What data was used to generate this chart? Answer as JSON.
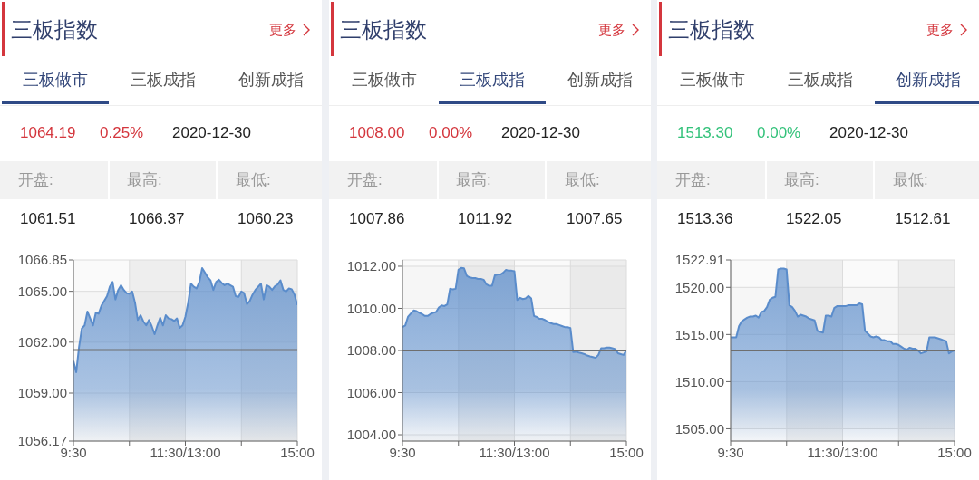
{
  "chart_data": [
    {
      "type": "area",
      "title": "三板指数",
      "annotations": [
        "更多",
        "三板做市",
        "三板成指",
        "创新成指",
        "1064.19",
        "0.25%",
        "2020-12-30",
        "开盘:",
        "最高:",
        "最低:",
        "1061.51",
        "1066.37",
        "1060.23"
      ],
      "categories": [
        "9:30",
        null,
        null,
        null,
        null,
        null,
        null,
        null,
        null,
        null,
        null,
        null,
        null,
        null,
        null,
        null,
        null,
        null,
        null,
        null,
        null,
        null,
        null,
        null,
        null,
        null,
        null,
        null,
        null,
        null,
        null,
        null,
        null,
        null,
        null,
        null,
        null,
        null,
        null,
        null,
        "11:30/13:00",
        null,
        null,
        null,
        null,
        null,
        null,
        null,
        null,
        null,
        null,
        null,
        null,
        null,
        null,
        null,
        null,
        null,
        null,
        null,
        null,
        null,
        null,
        null,
        null,
        null,
        null,
        null,
        null,
        null,
        null,
        null,
        null,
        null,
        null,
        null,
        null,
        null,
        null,
        null,
        "15:00"
      ],
      "values": [
        1060.89,
        1060.23,
        1061.72,
        1062.81,
        1062.99,
        1063.81,
        1063.4,
        1062.99,
        1063.74,
        1063.68,
        1064.15,
        1064.43,
        1064.71,
        1065.27,
        1065.55,
        1064.52,
        1065.08,
        1065.36,
        1065.08,
        1064.89,
        1064.86,
        1064.99,
        1064.33,
        1063.31,
        1063.59,
        1063.22,
        1062.99,
        1063.31,
        1062.94,
        1062.47,
        1062.99,
        1063.44,
        1062.99,
        1063.59,
        1063.4,
        1063.36,
        1063.25,
        1063.4,
        1062.84,
        1062.99,
        1063.5,
        1064.33,
        1065.45,
        1065.27,
        1065.17,
        1065.55,
        1066.37,
        1066.1,
        1065.82,
        1065.64,
        1065.08,
        1065.55,
        1065.68,
        1065.49,
        1065.36,
        1065.45,
        1065.36,
        1065.27,
        1064.71,
        1064.67,
        1064.99,
        1064.89,
        1064.24,
        1064.43,
        1064.8,
        1065.08,
        1065.27,
        1065.45,
        1064.52,
        1065.36,
        1065.27,
        1065.08,
        1065.3,
        1065.41,
        1065.64,
        1065.08,
        1064.99,
        1065.17,
        1065.12,
        1064.8,
        1064.19
      ],
      "color": "#5a8ccb",
      "ylim": [
        1056.17,
        1066.85
      ],
      "yticks": [
        1056.17,
        {
          "value": 1059,
          "label": "1059.00"
        },
        {
          "value": 1062,
          "label": "1062.00"
        },
        {
          "value": 1065,
          "label": "1065.00"
        },
        1066.85
      ],
      "ref_lines": [
        {
          "axis": "y",
          "value": 1061.54,
          "color": "#6e6e6e"
        }
      ],
      "grid": true
    },
    {
      "type": "area",
      "title": "三板指数",
      "annotations": [
        "更多",
        "三板做市",
        "三板成指",
        "创新成指",
        "1008.00",
        "0.00%",
        "2020-12-30",
        "开盘:",
        "最高:",
        "最低:",
        "1007.86",
        "1011.92",
        "1007.65"
      ],
      "categories": [
        "9:30",
        null,
        null,
        null,
        null,
        null,
        null,
        null,
        null,
        null,
        null,
        null,
        null,
        null,
        null,
        null,
        null,
        null,
        null,
        null,
        null,
        null,
        null,
        null,
        null,
        null,
        null,
        null,
        null,
        null,
        null,
        null,
        null,
        null,
        null,
        null,
        null,
        null,
        null,
        null,
        "11:30/13:00",
        null,
        null,
        null,
        null,
        null,
        null,
        null,
        null,
        null,
        null,
        null,
        null,
        null,
        null,
        null,
        null,
        null,
        null,
        null,
        null,
        null,
        null,
        null,
        null,
        null,
        null,
        null,
        null,
        null,
        null,
        null,
        null,
        null,
        null,
        null,
        null,
        null,
        null,
        null,
        "15:00"
      ],
      "values": [
        1009.11,
        1009.19,
        1009.61,
        1009.76,
        1009.9,
        1009.87,
        1009.79,
        1009.73,
        1009.64,
        1009.64,
        1009.73,
        1009.79,
        1009.83,
        1010.04,
        1010.14,
        1010.11,
        1010.19,
        1010.93,
        1010.9,
        1010.93,
        1011.83,
        1011.92,
        1011.9,
        1011.54,
        1011.47,
        1011.44,
        1011.44,
        1011.4,
        1011.4,
        1011.36,
        1011.14,
        1011.07,
        1011.07,
        1011.57,
        1011.61,
        1011.61,
        1011.69,
        1011.83,
        1011.79,
        1011.79,
        1011.76,
        1010.4,
        1010.5,
        1010.44,
        1010.47,
        1010.59,
        1010.47,
        1009.64,
        1009.59,
        1009.5,
        1009.5,
        1009.44,
        1009.36,
        1009.3,
        1009.26,
        1009.26,
        1009.21,
        1009.16,
        1009.11,
        1009.11,
        1009.07,
        1007.93,
        1007.94,
        1007.9,
        1007.87,
        1007.83,
        1007.76,
        1007.72,
        1007.69,
        1007.65,
        1007.79,
        1008.11,
        1008.11,
        1008.14,
        1008.14,
        1008.11,
        1008.07,
        1007.87,
        1007.83,
        1007.79,
        1008.0
      ],
      "color": "#5a8ccb",
      "ylim": [
        1003.7,
        1012.3
      ],
      "yticks": [
        {
          "value": 1004,
          "label": "1004.00"
        },
        {
          "value": 1006,
          "label": "1006.00"
        },
        {
          "value": 1008,
          "label": "1008.00"
        },
        {
          "value": 1010,
          "label": "1010.00"
        },
        {
          "value": 1012,
          "label": "1012.00"
        }
      ],
      "ref_lines": [
        {
          "axis": "y",
          "value": 1008,
          "color": "#6e6e6e"
        }
      ],
      "grid": true
    },
    {
      "type": "area",
      "title": "三板指数",
      "annotations": [
        "更多",
        "三板做市",
        "三板成指",
        "创新成指",
        "1513.30",
        "0.00%",
        "2020-12-30",
        "开盘:",
        "最高:",
        "最低:",
        "1513.36",
        "1522.05",
        "1512.61"
      ],
      "categories": [
        "9:30",
        null,
        null,
        null,
        null,
        null,
        null,
        null,
        null,
        null,
        null,
        null,
        null,
        null,
        null,
        null,
        null,
        null,
        null,
        null,
        null,
        null,
        null,
        null,
        null,
        null,
        null,
        null,
        null,
        null,
        null,
        null,
        null,
        null,
        null,
        null,
        null,
        null,
        null,
        null,
        "11:30/13:00",
        null,
        null,
        null,
        null,
        null,
        null,
        null,
        null,
        null,
        null,
        null,
        null,
        null,
        null,
        null,
        null,
        null,
        null,
        null,
        null,
        null,
        null,
        null,
        null,
        null,
        null,
        null,
        null,
        null,
        null,
        null,
        null,
        null,
        null,
        null,
        null,
        null,
        null,
        null,
        "15:00"
      ],
      "values": [
        1514.7,
        1514.7,
        1514.7,
        1515.9,
        1516.4,
        1516.6,
        1516.8,
        1516.9,
        1516.9,
        1517.0,
        1516.8,
        1517.4,
        1517.5,
        1517.9,
        1518.7,
        1518.9,
        1519.0,
        1521.9,
        1522.0,
        1522.0,
        1521.9,
        1518.1,
        1517.9,
        1517.5,
        1516.9,
        1517.1,
        1517.0,
        1516.9,
        1516.7,
        1516.6,
        1516.5,
        1515.4,
        1515.3,
        1515.2,
        1517.0,
        1517.0,
        1516.9,
        1517.8,
        1518.0,
        1518.0,
        1518.0,
        1518.0,
        1518.1,
        1518.1,
        1518.1,
        1518.1,
        1518.3,
        1518.2,
        1515.4,
        1515.1,
        1514.8,
        1514.7,
        1514.8,
        1514.7,
        1514.4,
        1514.4,
        1514.3,
        1514.3,
        1514.0,
        1514.0,
        1513.9,
        1513.7,
        1513.5,
        1513.4,
        1513.6,
        1513.5,
        1513.5,
        1513.3,
        1513.0,
        1513.1,
        1513.2,
        1514.7,
        1514.7,
        1514.7,
        1514.6,
        1514.5,
        1514.4,
        1514.3,
        1513.0,
        1513.2,
        1513.3
      ],
      "color": "#5a8ccb",
      "ylim": [
        1503.7,
        1522.91
      ],
      "yticks": [
        {
          "value": 1505,
          "label": "1505.00"
        },
        {
          "value": 1510,
          "label": "1510.00"
        },
        {
          "value": 1515,
          "label": "1515.00"
        },
        {
          "value": 1520,
          "label": "1520.00"
        },
        1522.91
      ],
      "ref_lines": [
        {
          "axis": "y",
          "value": 1513.3,
          "color": "#6e6e6e"
        }
      ],
      "grid": true
    }
  ]
}
